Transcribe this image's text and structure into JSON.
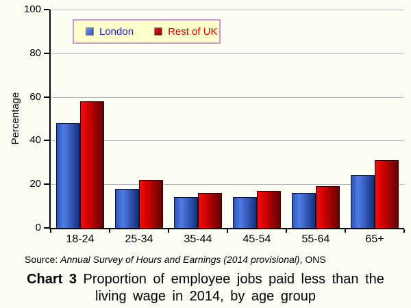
{
  "chart_data": {
    "type": "bar",
    "categories": [
      "18-24",
      "25-34",
      "35-44",
      "45-54",
      "55-64",
      "65+"
    ],
    "series": [
      {
        "name": "London",
        "values": [
          48,
          18,
          14,
          14,
          16,
          24
        ],
        "label_color": "#1a1ad2",
        "bar_gradient": [
          "#2e55b8",
          "#4f7ce6",
          "#16307e"
        ],
        "bar_border": "#0a1030",
        "swatch_gradient": [
          "#6f97ee",
          "#2a50b0"
        ]
      },
      {
        "name": "Rest of UK",
        "values": [
          58,
          22,
          16,
          17,
          19,
          31
        ],
        "label_color": "#d40000",
        "bar_gradient": [
          "#ee1111",
          "#d60000",
          "#600404"
        ],
        "bar_border": "#2a0000",
        "swatch_gradient": [
          "#e81010",
          "#900000"
        ]
      }
    ],
    "ylabel": "Percentage",
    "xlabel": "",
    "ylim": [
      0,
      100
    ],
    "yticks": [
      0,
      20,
      40,
      60,
      80,
      100
    ],
    "grid": true,
    "gridline_color": "#b9b9b9",
    "legend_position": "top-left-inside",
    "legend_bg": "#ffffcc",
    "legend_border": "#cc99cc"
  },
  "source": {
    "prefix": "Source: ",
    "body": "Annual Survey of Hours and Earnings (2014 provisional)",
    "suffix": ", ONS"
  },
  "caption": {
    "bold": "Chart 3",
    "line1": " Proportion of employee jobs paid less than the",
    "line2": "living wage in 2014, by age group"
  }
}
